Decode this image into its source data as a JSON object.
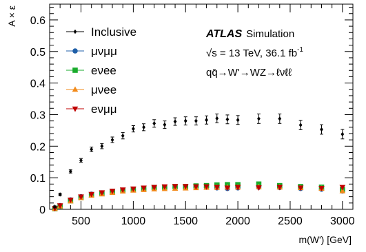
{
  "chart_data": {
    "type": "scatter",
    "xlabel": "m(W') [GeV]",
    "ylabel": "A × ε",
    "xlim": [
      200,
      3100
    ],
    "ylim": [
      0,
      0.65
    ],
    "xticks": [
      500,
      1000,
      1500,
      2000,
      2500,
      3000
    ],
    "xtick_labels": [
      "500",
      "1000",
      "1500",
      "2000",
      "2500",
      "3000"
    ],
    "yticks": [
      0,
      0.1,
      0.2,
      0.3,
      0.4,
      0.5,
      0.6
    ],
    "ytick_labels": [
      "0",
      "0.1",
      "0.2",
      "0.3",
      "0.4",
      "0.5",
      "0.6"
    ],
    "grid": false,
    "legend_position": "top-left",
    "annotations": {
      "atlas": "ATLAS",
      "simulation": "Simulation",
      "energy": "√s = 13 TeV, 36.1 fb",
      "energy_sup": "-1",
      "process": "qq̄→W'→WZ→ℓνℓℓ"
    },
    "x": [
      250,
      300,
      400,
      500,
      600,
      700,
      800,
      900,
      1000,
      1100,
      1200,
      1300,
      1400,
      1500,
      1600,
      1700,
      1800,
      1900,
      2000,
      2200,
      2400,
      2600,
      2800,
      3000
    ],
    "series": [
      {
        "name": "Inclusive",
        "color": "#000000",
        "marker": "diamond",
        "values": [
          0.008,
          0.047,
          0.12,
          0.155,
          0.19,
          0.2,
          0.22,
          0.233,
          0.255,
          0.26,
          0.272,
          0.268,
          0.278,
          0.28,
          0.28,
          0.283,
          0.288,
          0.285,
          0.283,
          0.287,
          0.287,
          0.267,
          0.253,
          0.238
        ],
        "errors": [
          0.003,
          0.004,
          0.005,
          0.006,
          0.007,
          0.008,
          0.009,
          0.01,
          0.01,
          0.011,
          0.012,
          0.012,
          0.012,
          0.013,
          0.013,
          0.013,
          0.014,
          0.014,
          0.014,
          0.015,
          0.015,
          0.015,
          0.015,
          0.015
        ]
      },
      {
        "name": "μνμμ",
        "color": "#1f5fa8",
        "marker": "circle",
        "values": [
          0.003,
          0.012,
          0.03,
          0.04,
          0.048,
          0.052,
          0.057,
          0.06,
          0.062,
          0.065,
          0.067,
          0.068,
          0.07,
          0.07,
          0.071,
          0.07,
          0.068,
          0.066,
          0.068,
          0.07,
          0.069,
          0.066,
          0.064,
          0.058
        ]
      },
      {
        "name": "eνee",
        "color": "#1aab2c",
        "marker": "square",
        "values": [
          0.002,
          0.01,
          0.027,
          0.037,
          0.046,
          0.051,
          0.056,
          0.06,
          0.063,
          0.066,
          0.069,
          0.07,
          0.072,
          0.072,
          0.074,
          0.075,
          0.077,
          0.078,
          0.078,
          0.08,
          0.075,
          0.072,
          0.07,
          0.062
        ]
      },
      {
        "name": "μνee",
        "color": "#f28a1a",
        "marker": "triangle-up",
        "values": [
          0.002,
          0.01,
          0.026,
          0.036,
          0.044,
          0.048,
          0.053,
          0.057,
          0.06,
          0.062,
          0.064,
          0.065,
          0.066,
          0.067,
          0.068,
          0.069,
          0.069,
          0.07,
          0.07,
          0.071,
          0.07,
          0.068,
          0.066,
          0.058
        ]
      },
      {
        "name": "eνμμ",
        "color": "#c00000",
        "marker": "triangle-down",
        "values": [
          0.003,
          0.012,
          0.03,
          0.04,
          0.048,
          0.053,
          0.058,
          0.062,
          0.065,
          0.068,
          0.07,
          0.072,
          0.073,
          0.073,
          0.072,
          0.072,
          0.07,
          0.068,
          0.07,
          0.069,
          0.07,
          0.068,
          0.067,
          0.07
        ]
      }
    ]
  }
}
